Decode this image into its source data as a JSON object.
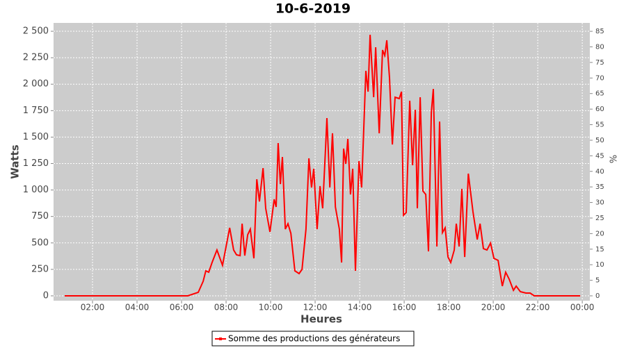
{
  "chart_data": {
    "type": "line",
    "title": "10-6-2019",
    "xlabel": "Heures",
    "ylabel": "Watts",
    "y2label": "%",
    "x": [
      0.75,
      6.28,
      6.75,
      6.97,
      7.09,
      7.22,
      7.37,
      7.59,
      7.84,
      8.16,
      8.34,
      8.47,
      8.63,
      8.72,
      8.84,
      8.97,
      9.09,
      9.25,
      9.38,
      9.5,
      9.66,
      9.78,
      9.97,
      10.16,
      10.25,
      10.34,
      10.44,
      10.53,
      10.66,
      10.78,
      10.91,
      11.09,
      11.28,
      11.41,
      11.59,
      11.72,
      11.84,
      11.94,
      12.09,
      12.22,
      12.34,
      12.47,
      12.53,
      12.66,
      12.78,
      12.91,
      13.09,
      13.19,
      13.28,
      13.38,
      13.47,
      13.59,
      13.69,
      13.81,
      13.97,
      14.09,
      14.28,
      14.38,
      14.47,
      14.63,
      14.72,
      14.88,
      15.03,
      15.13,
      15.22,
      15.34,
      15.47,
      15.59,
      15.78,
      15.88,
      15.97,
      16.09,
      16.25,
      16.38,
      16.5,
      16.59,
      16.72,
      16.84,
      16.97,
      17.09,
      17.22,
      17.31,
      17.47,
      17.59,
      17.72,
      17.84,
      17.97,
      18.09,
      18.25,
      18.34,
      18.47,
      18.59,
      18.72,
      18.88,
      19.09,
      19.28,
      19.41,
      19.56,
      19.72,
      19.88,
      20.03,
      20.22,
      20.41,
      20.56,
      20.72,
      20.91,
      21.03,
      21.22,
      21.47,
      21.66,
      21.84,
      23.91
    ],
    "series": [
      {
        "name": "Somme des productions des  générateurs",
        "color": "#ff0000",
        "values": [
          0,
          0,
          33,
          138,
          236,
          223,
          315,
          433,
          289,
          643,
          433,
          387,
          380,
          682,
          380,
          577,
          630,
          354,
          1102,
          892,
          1207,
          827,
          604,
          912,
          840,
          1444,
          1056,
          1312,
          630,
          682,
          590,
          236,
          210,
          249,
          630,
          1299,
          1024,
          1201,
          630,
          1037,
          827,
          1404,
          1680,
          1024,
          1536,
          840,
          630,
          315,
          1391,
          1247,
          1483,
          958,
          1201,
          236,
          1273,
          1024,
          2126,
          1929,
          2467,
          1877,
          2349,
          1536,
          2323,
          2270,
          2415,
          2060,
          1430,
          1877,
          1864,
          1929,
          761,
          787,
          1844,
          1234,
          1759,
          827,
          1877,
          991,
          958,
          420,
          1732,
          1955,
          466,
          1647,
          597,
          643,
          367,
          315,
          433,
          682,
          466,
          1011,
          367,
          1155,
          794,
          532,
          682,
          446,
          433,
          499,
          354,
          335,
          92,
          223,
          157,
          52,
          92,
          39,
          26,
          26,
          0,
          0
        ]
      }
    ],
    "xlim": [
      0.25,
      24.34
    ],
    "xticks": [
      {
        "value": 2,
        "label": "02:00"
      },
      {
        "value": 4,
        "label": "04:00"
      },
      {
        "value": 6,
        "label": "06:00"
      },
      {
        "value": 8,
        "label": "08:00"
      },
      {
        "value": 10,
        "label": "10:00"
      },
      {
        "value": 12,
        "label": "12:00"
      },
      {
        "value": 14,
        "label": "14:00"
      },
      {
        "value": 16,
        "label": "16:00"
      },
      {
        "value": 18,
        "label": "18:00"
      },
      {
        "value": 20,
        "label": "20:00"
      },
      {
        "value": 22,
        "label": "22:00"
      },
      {
        "value": 24,
        "label": "00:00"
      }
    ],
    "ylim": [
      -46,
      2579
    ],
    "yticks": [
      0,
      250,
      500,
      750,
      {
        "value": 1000,
        "label": "1 000"
      },
      {
        "value": 1250,
        "label": "1 250"
      },
      {
        "value": 1500,
        "label": "1 500"
      },
      {
        "value": 1750,
        "label": "1 750"
      },
      {
        "value": 2000,
        "label": "2 000"
      },
      {
        "value": 2250,
        "label": "2 250"
      },
      {
        "value": 2500,
        "label": "2 500"
      }
    ],
    "y2lim": [
      -1.56,
      87.7
    ],
    "y2ticks": [
      0,
      5,
      10,
      15,
      20,
      25,
      30,
      35,
      40,
      45,
      50,
      55,
      60,
      65,
      70,
      75,
      80,
      85
    ],
    "grid": true,
    "legend": "bottom"
  }
}
